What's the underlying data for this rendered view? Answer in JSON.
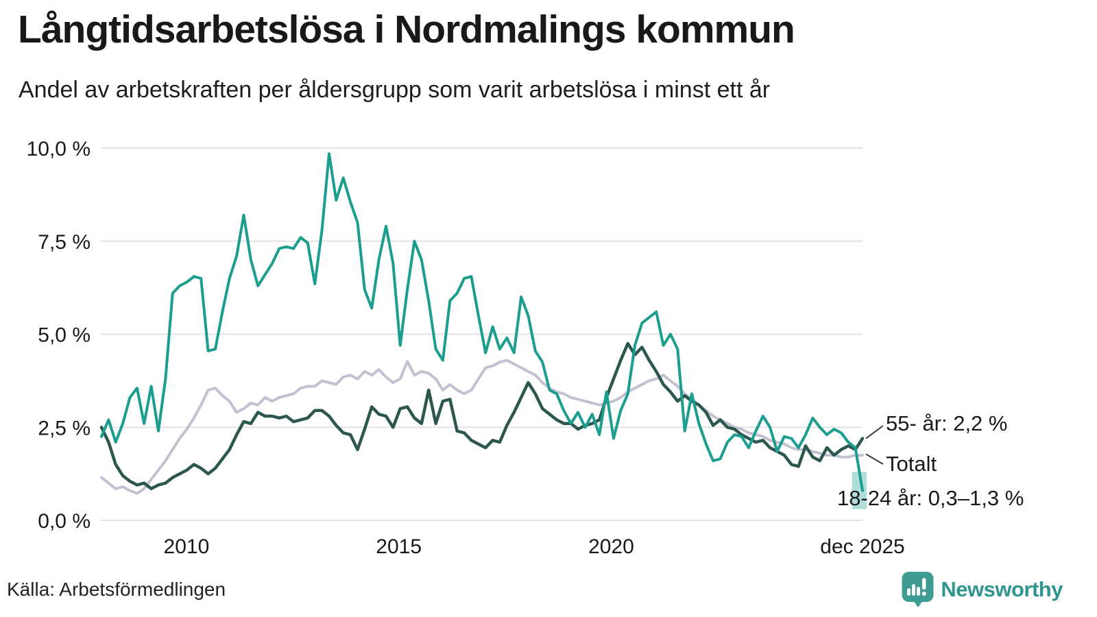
{
  "title": "Långtidsarbetslösa i Nordmalings kommun",
  "subtitle": "Andel av arbetskraften per åldersgrupp som varit arbetslösa i minst ett år",
  "source": "Källa: Arbetsförmedlingen",
  "branding": {
    "name": "Newsworthy",
    "logo_icon": "speech-bubble-bar-chart-exclamation-icon",
    "wordmark_color": "#2e968c",
    "icon_color": "#3f9c93"
  },
  "chart_data": {
    "type": "line",
    "title": "Långtidsarbetslösa i Nordmalings kommun",
    "subtitle": "Andel av arbetskraften per åldersgrupp som varit arbetslösa i minst ett år",
    "unit": "%",
    "grid": true,
    "background": "#ffffff",
    "gridline_color": "#e3e2e6",
    "text_color": "#191919",
    "x_axis": {
      "range_start": 2008.0,
      "range_end": 2025.9167,
      "tick_years": [
        2010,
        2015,
        2020,
        2025.9167
      ],
      "tick_labels": [
        "2010",
        "2015",
        "2020",
        "dec 2025"
      ]
    },
    "y_axis": {
      "range": [
        0,
        10.5
      ],
      "tick_values": [
        0,
        2.5,
        5,
        7.5,
        10
      ],
      "tick_labels": [
        "0,0 %",
        "2,5 %",
        "5,0 %",
        "7,5 %",
        "10,0 %"
      ]
    },
    "sampling": "every 2 months, Jan 2008 to Dec 2025",
    "draw_order": [
      "Totalt",
      "55- år",
      "18-24 år"
    ],
    "series": [
      {
        "name": "18-24 år",
        "color": "#1b9e8d",
        "stroke_width": 4,
        "values": [
          2.25,
          2.7,
          2.1,
          2.6,
          3.3,
          3.55,
          2.6,
          3.6,
          2.4,
          3.8,
          6.1,
          6.3,
          6.4,
          6.55,
          6.5,
          4.55,
          4.6,
          5.6,
          6.5,
          7.1,
          8.2,
          7.0,
          6.3,
          6.6,
          6.9,
          7.3,
          7.35,
          7.3,
          7.6,
          7.45,
          6.35,
          7.8,
          9.85,
          8.6,
          9.2,
          8.55,
          8.0,
          6.2,
          5.7,
          7.0,
          7.9,
          6.9,
          4.7,
          6.2,
          7.5,
          7.0,
          5.9,
          4.6,
          4.3,
          5.9,
          6.1,
          6.5,
          6.55,
          5.5,
          4.5,
          5.2,
          4.6,
          4.9,
          4.5,
          6.0,
          5.5,
          4.55,
          4.25,
          3.5,
          3.4,
          2.95,
          2.6,
          2.9,
          2.5,
          2.85,
          2.3,
          3.45,
          2.2,
          2.95,
          3.4,
          4.7,
          5.3,
          5.45,
          5.6,
          4.7,
          5.0,
          4.6,
          2.4,
          3.4,
          2.6,
          2.05,
          1.6,
          1.65,
          2.1,
          2.3,
          2.25,
          1.95,
          2.4,
          2.8,
          2.5,
          1.85,
          2.25,
          2.2,
          1.95,
          2.3,
          2.75,
          2.5,
          2.3,
          2.45,
          2.35,
          2.1,
          1.95,
          0.8
        ]
      },
      {
        "name": "55- år",
        "color": "#2b574e",
        "stroke_width": 4.5,
        "values": [
          2.5,
          2.1,
          1.5,
          1.2,
          1.05,
          0.95,
          1.0,
          0.85,
          0.95,
          1.0,
          1.15,
          1.25,
          1.35,
          1.5,
          1.4,
          1.25,
          1.4,
          1.65,
          1.9,
          2.3,
          2.65,
          2.6,
          2.9,
          2.8,
          2.8,
          2.75,
          2.8,
          2.65,
          2.7,
          2.75,
          2.95,
          2.95,
          2.8,
          2.55,
          2.35,
          2.3,
          1.9,
          2.45,
          3.05,
          2.85,
          2.8,
          2.5,
          3.0,
          3.05,
          2.75,
          2.6,
          3.5,
          2.6,
          3.2,
          3.25,
          2.4,
          2.35,
          2.15,
          2.05,
          1.95,
          2.15,
          2.1,
          2.55,
          2.9,
          3.3,
          3.7,
          3.4,
          3.0,
          2.85,
          2.7,
          2.6,
          2.6,
          2.45,
          2.55,
          2.6,
          2.7,
          3.3,
          3.8,
          4.3,
          4.75,
          4.45,
          4.65,
          4.3,
          4.0,
          3.65,
          3.45,
          3.2,
          3.35,
          3.2,
          3.1,
          2.9,
          2.55,
          2.7,
          2.5,
          2.45,
          2.3,
          2.2,
          2.1,
          2.15,
          1.95,
          1.85,
          1.75,
          1.5,
          1.45,
          2.0,
          1.7,
          1.6,
          1.95,
          1.75,
          1.9,
          2.0,
          1.9,
          2.2
        ]
      },
      {
        "name": "Totalt",
        "color": "#c3c1d1",
        "stroke_width": 4,
        "values": [
          1.15,
          1.0,
          0.85,
          0.9,
          0.8,
          0.72,
          0.85,
          1.1,
          1.35,
          1.6,
          1.9,
          2.2,
          2.45,
          2.75,
          3.1,
          3.5,
          3.55,
          3.35,
          3.2,
          2.9,
          3.0,
          3.15,
          3.1,
          3.3,
          3.2,
          3.3,
          3.35,
          3.4,
          3.55,
          3.6,
          3.6,
          3.75,
          3.7,
          3.65,
          3.85,
          3.9,
          3.8,
          4.0,
          3.9,
          4.05,
          3.85,
          3.7,
          3.8,
          4.27,
          3.9,
          4.0,
          3.95,
          3.8,
          3.5,
          3.65,
          3.5,
          3.4,
          3.5,
          3.8,
          4.1,
          4.15,
          4.25,
          4.3,
          4.2,
          4.1,
          4.0,
          3.9,
          3.7,
          3.55,
          3.45,
          3.4,
          3.3,
          3.25,
          3.2,
          3.15,
          3.1,
          3.15,
          3.2,
          3.3,
          3.45,
          3.55,
          3.65,
          3.75,
          3.8,
          3.9,
          3.75,
          3.6,
          3.4,
          3.25,
          3.1,
          2.95,
          2.8,
          2.7,
          2.6,
          2.5,
          2.45,
          2.35,
          2.3,
          2.25,
          2.15,
          2.1,
          2.05,
          1.95,
          1.9,
          1.9,
          1.85,
          1.8,
          1.75,
          1.75,
          1.7,
          1.7,
          1.75,
          1.75
        ]
      }
    ],
    "annotations": [
      {
        "label": "55- år: 2,2 %",
        "series": "55- år",
        "value": 2.2
      },
      {
        "label": "Totalt",
        "series": "Totalt",
        "value": 1.75
      },
      {
        "label": "18-24 år: 0,3–1,3 %",
        "series": "18-24 år",
        "range": [
          0.3,
          1.3
        ]
      }
    ],
    "uncertainty_band": {
      "series": "18-24 år",
      "x_from": 2025.67,
      "x_to": 2025.9167,
      "y_from": 0.3,
      "y_to": 1.3,
      "color": "rgba(27,158,141,0.35)"
    }
  }
}
